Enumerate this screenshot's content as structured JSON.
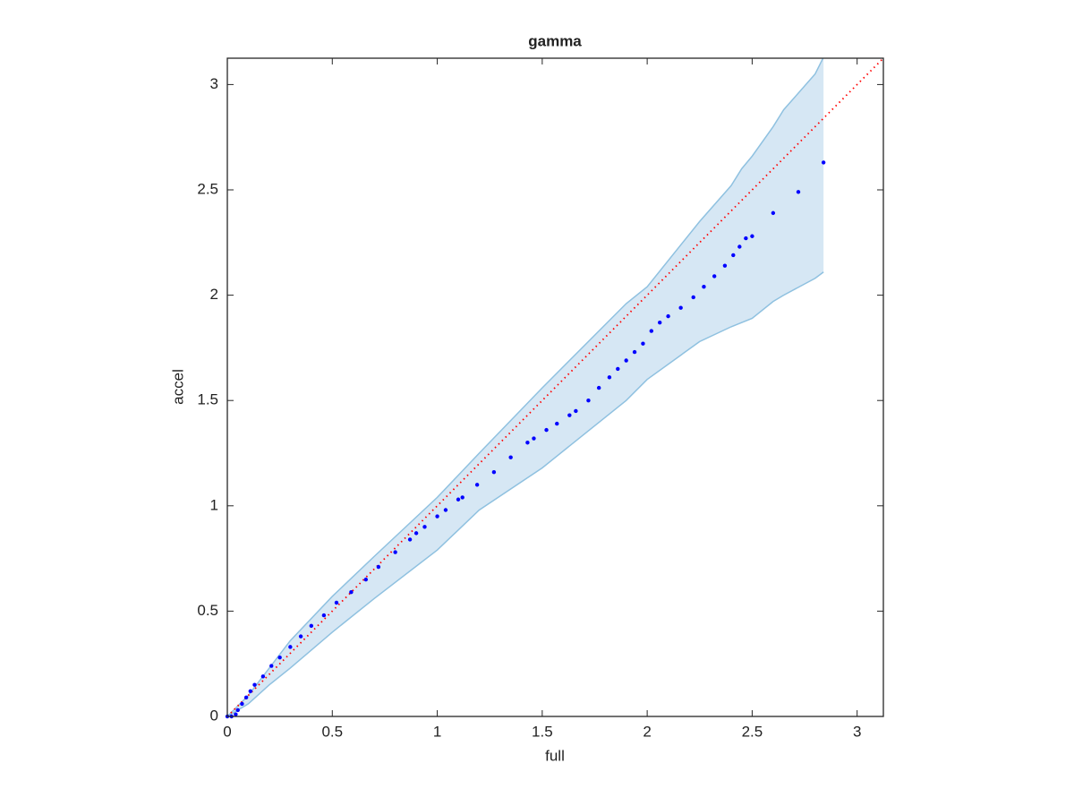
{
  "chart_data": {
    "type": "scatter",
    "title": "gamma",
    "xlabel": "full",
    "ylabel": "accel",
    "xlim": [
      0,
      3.125
    ],
    "ylim": [
      0,
      3.125
    ],
    "xticks": [
      0,
      0.5,
      1,
      1.5,
      2,
      2.5,
      3
    ],
    "yticks": [
      0,
      0.5,
      1,
      1.5,
      2,
      2.5,
      3
    ],
    "points": {
      "color": "#0000ff",
      "x": [
        0,
        0.02,
        0.04,
        0.05,
        0.07,
        0.09,
        0.11,
        0.13,
        0.17,
        0.21,
        0.25,
        0.3,
        0.35,
        0.4,
        0.46,
        0.52,
        0.59,
        0.66,
        0.72,
        0.8,
        0.87,
        0.9,
        0.94,
        1.0,
        1.04,
        1.1,
        1.12,
        1.19,
        1.27,
        1.35,
        1.43,
        1.46,
        1.52,
        1.57,
        1.63,
        1.66,
        1.72,
        1.77,
        1.82,
        1.86,
        1.9,
        1.94,
        1.98,
        2.02,
        2.06,
        2.1,
        2.16,
        2.22,
        2.27,
        2.32,
        2.37,
        2.41,
        2.44,
        2.47,
        2.5,
        2.6,
        2.72,
        2.84
      ],
      "y": [
        0,
        0,
        0.01,
        0.03,
        0.06,
        0.09,
        0.12,
        0.15,
        0.19,
        0.24,
        0.28,
        0.33,
        0.38,
        0.43,
        0.48,
        0.54,
        0.59,
        0.65,
        0.71,
        0.78,
        0.84,
        0.87,
        0.9,
        0.95,
        0.98,
        1.03,
        1.04,
        1.1,
        1.16,
        1.23,
        1.3,
        1.32,
        1.36,
        1.39,
        1.43,
        1.45,
        1.5,
        1.56,
        1.61,
        1.65,
        1.69,
        1.73,
        1.77,
        1.83,
        1.87,
        1.9,
        1.94,
        1.99,
        2.04,
        2.09,
        2.14,
        2.19,
        2.23,
        2.27,
        2.28,
        2.39,
        2.49,
        2.63
      ]
    },
    "band": {
      "color": "#d6e7f4",
      "edge_color": "#8fc1e0",
      "x": [
        0,
        0.1,
        0.2,
        0.3,
        0.5,
        0.7,
        1.0,
        1.2,
        1.5,
        1.9,
        2.0,
        2.25,
        2.4,
        2.45,
        2.5,
        2.6,
        2.65,
        2.8,
        2.84
      ],
      "upper": [
        0,
        0.1,
        0.23,
        0.36,
        0.57,
        0.76,
        1.04,
        1.25,
        1.56,
        1.96,
        2.04,
        2.35,
        2.52,
        2.6,
        2.66,
        2.8,
        2.88,
        3.05,
        3.13
      ],
      "lower": [
        0,
        0.06,
        0.15,
        0.23,
        0.4,
        0.56,
        0.79,
        0.98,
        1.18,
        1.5,
        1.6,
        1.78,
        1.85,
        1.87,
        1.89,
        1.97,
        2.0,
        2.08,
        2.11
      ]
    },
    "reference": {
      "color": "#ff0000",
      "x": [
        0,
        3.125
      ],
      "y": [
        0,
        3.125
      ]
    }
  }
}
